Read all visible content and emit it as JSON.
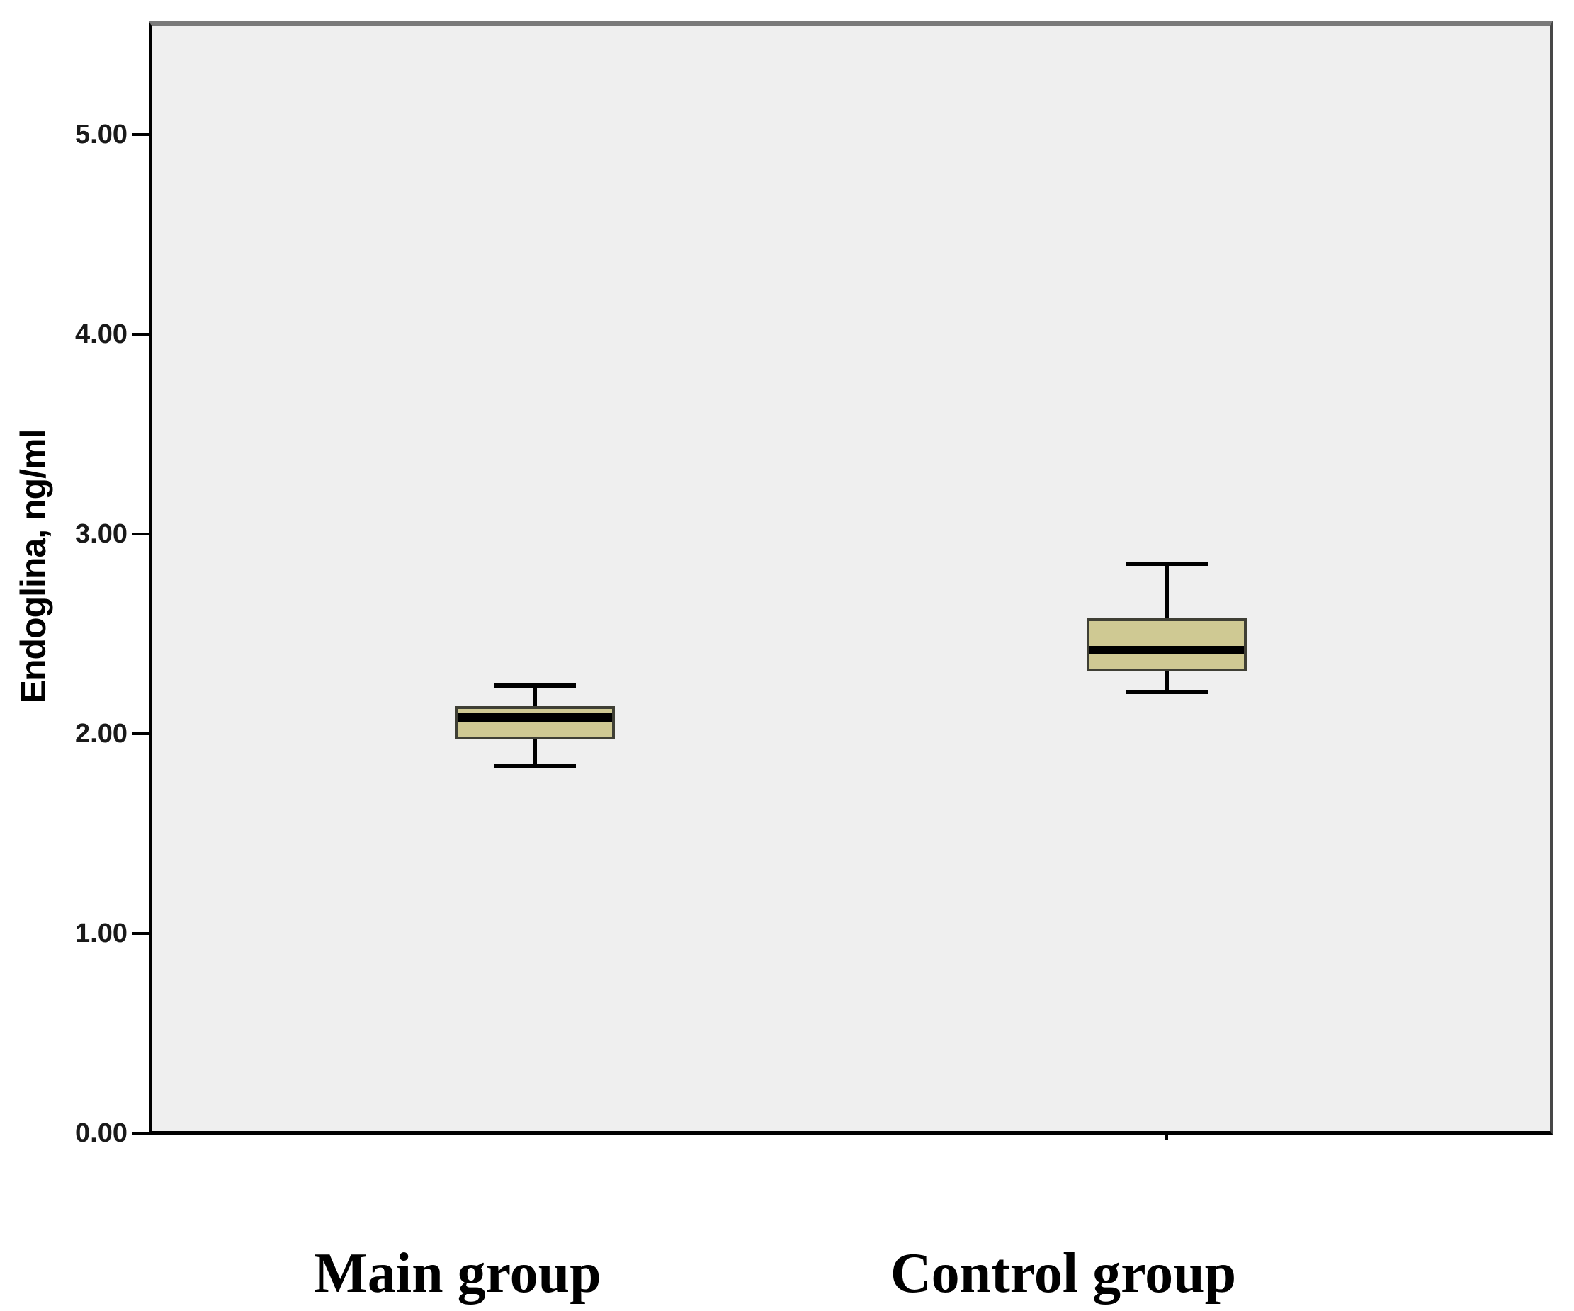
{
  "chart_data": {
    "type": "boxplot",
    "title": "",
    "xlabel": "",
    "ylabel": "Endoglina, ng/ml",
    "categories": [
      "Main group",
      "Control group"
    ],
    "series": [
      {
        "name": "Main group",
        "min": 1.84,
        "q1": 1.98,
        "median": 2.08,
        "q3": 2.13,
        "max": 2.24
      },
      {
        "name": "Control group",
        "min": 2.21,
        "q1": 2.32,
        "median": 2.42,
        "q3": 2.57,
        "max": 2.85
      }
    ],
    "ylim": [
      0,
      5.55
    ],
    "yticks": [
      {
        "value": 0,
        "label": "0.00"
      },
      {
        "value": 1,
        "label": "1.00"
      },
      {
        "value": 2,
        "label": "2.00"
      },
      {
        "value": 3,
        "label": "3.00"
      },
      {
        "value": 4,
        "label": "4.00"
      },
      {
        "value": 5,
        "label": "5.00"
      }
    ],
    "category_axis_tick_visible": [
      false,
      true
    ],
    "grid": false,
    "legend": "none",
    "colors": {
      "box_fill": "#cfc993",
      "box_border": "#3f3f35",
      "median": "#000000",
      "whisker": "#000000",
      "axis": "#000000",
      "plot_bg": "#efefef",
      "plot_top_border": "#7a7a7a",
      "plot_right_border": "#474747",
      "tick_label": "#1a1a1a",
      "figure_bg": "#ffffff"
    }
  }
}
